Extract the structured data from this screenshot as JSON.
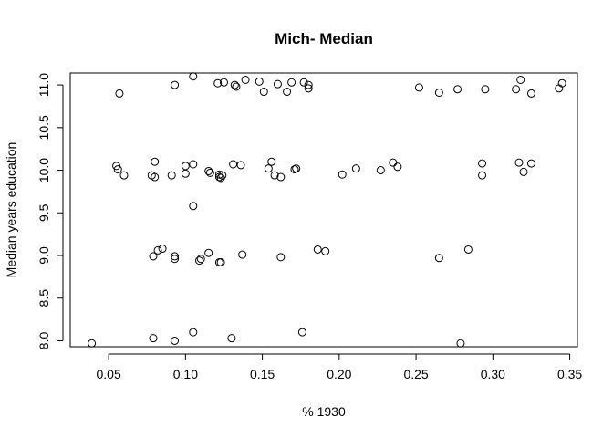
{
  "chart_data": {
    "type": "scatter",
    "title": "Mich- Median",
    "xlabel": "% 1930",
    "ylabel": "Median years education",
    "xlim": [
      0.025,
      0.355
    ],
    "ylim": [
      7.93,
      11.14
    ],
    "x_ticks": [
      0.05,
      0.1,
      0.15,
      0.2,
      0.25,
      0.3,
      0.35
    ],
    "x_tick_labels": [
      "0.05",
      "0.10",
      "0.15",
      "0.20",
      "0.25",
      "0.30",
      "0.35"
    ],
    "y_ticks": [
      8.0,
      8.5,
      9.0,
      9.5,
      10.0,
      10.5,
      11.0
    ],
    "y_tick_labels": [
      "8.0",
      "8.5",
      "9.0",
      "9.5",
      "10.0",
      "10.5",
      "11.0"
    ],
    "grid": false,
    "points": [
      {
        "x": 0.039,
        "y": 7.97
      },
      {
        "x": 0.079,
        "y": 8.03
      },
      {
        "x": 0.093,
        "y": 8.0
      },
      {
        "x": 0.105,
        "y": 8.1
      },
      {
        "x": 0.13,
        "y": 8.03
      },
      {
        "x": 0.176,
        "y": 8.1
      },
      {
        "x": 0.279,
        "y": 7.97
      },
      {
        "x": 0.079,
        "y": 8.99
      },
      {
        "x": 0.082,
        "y": 9.06
      },
      {
        "x": 0.085,
        "y": 9.08
      },
      {
        "x": 0.093,
        "y": 8.99
      },
      {
        "x": 0.093,
        "y": 8.96
      },
      {
        "x": 0.109,
        "y": 8.94
      },
      {
        "x": 0.11,
        "y": 8.96
      },
      {
        "x": 0.115,
        "y": 9.03
      },
      {
        "x": 0.122,
        "y": 8.92
      },
      {
        "x": 0.123,
        "y": 8.92
      },
      {
        "x": 0.137,
        "y": 9.01
      },
      {
        "x": 0.162,
        "y": 8.98
      },
      {
        "x": 0.186,
        "y": 9.07
      },
      {
        "x": 0.191,
        "y": 9.05
      },
      {
        "x": 0.265,
        "y": 8.97
      },
      {
        "x": 0.284,
        "y": 9.07
      },
      {
        "x": 0.105,
        "y": 9.58
      },
      {
        "x": 0.055,
        "y": 10.05
      },
      {
        "x": 0.056,
        "y": 10.01
      },
      {
        "x": 0.06,
        "y": 9.94
      },
      {
        "x": 0.078,
        "y": 9.94
      },
      {
        "x": 0.08,
        "y": 10.1
      },
      {
        "x": 0.08,
        "y": 9.92
      },
      {
        "x": 0.091,
        "y": 9.94
      },
      {
        "x": 0.1,
        "y": 10.05
      },
      {
        "x": 0.1,
        "y": 9.96
      },
      {
        "x": 0.105,
        "y": 10.07
      },
      {
        "x": 0.115,
        "y": 9.99
      },
      {
        "x": 0.116,
        "y": 9.97
      },
      {
        "x": 0.122,
        "y": 9.92
      },
      {
        "x": 0.122,
        "y": 9.95
      },
      {
        "x": 0.123,
        "y": 9.91
      },
      {
        "x": 0.124,
        "y": 9.94
      },
      {
        "x": 0.131,
        "y": 10.07
      },
      {
        "x": 0.136,
        "y": 10.06
      },
      {
        "x": 0.154,
        "y": 10.02
      },
      {
        "x": 0.156,
        "y": 10.1
      },
      {
        "x": 0.158,
        "y": 9.94
      },
      {
        "x": 0.162,
        "y": 9.92
      },
      {
        "x": 0.171,
        "y": 10.01
      },
      {
        "x": 0.172,
        "y": 10.02
      },
      {
        "x": 0.202,
        "y": 9.95
      },
      {
        "x": 0.211,
        "y": 10.02
      },
      {
        "x": 0.227,
        "y": 10.0
      },
      {
        "x": 0.235,
        "y": 10.09
      },
      {
        "x": 0.238,
        "y": 10.04
      },
      {
        "x": 0.293,
        "y": 10.08
      },
      {
        "x": 0.293,
        "y": 9.94
      },
      {
        "x": 0.317,
        "y": 10.09
      },
      {
        "x": 0.32,
        "y": 9.98
      },
      {
        "x": 0.325,
        "y": 10.08
      },
      {
        "x": 0.057,
        "y": 10.9
      },
      {
        "x": 0.093,
        "y": 11.0
      },
      {
        "x": 0.105,
        "y": 11.1
      },
      {
        "x": 0.121,
        "y": 11.02
      },
      {
        "x": 0.125,
        "y": 11.03
      },
      {
        "x": 0.132,
        "y": 11.0
      },
      {
        "x": 0.133,
        "y": 10.98
      },
      {
        "x": 0.139,
        "y": 11.06
      },
      {
        "x": 0.148,
        "y": 11.04
      },
      {
        "x": 0.151,
        "y": 10.92
      },
      {
        "x": 0.16,
        "y": 11.01
      },
      {
        "x": 0.166,
        "y": 10.92
      },
      {
        "x": 0.169,
        "y": 11.03
      },
      {
        "x": 0.177,
        "y": 11.03
      },
      {
        "x": 0.18,
        "y": 11.0
      },
      {
        "x": 0.18,
        "y": 10.96
      },
      {
        "x": 0.252,
        "y": 10.97
      },
      {
        "x": 0.265,
        "y": 10.91
      },
      {
        "x": 0.277,
        "y": 10.95
      },
      {
        "x": 0.295,
        "y": 10.95
      },
      {
        "x": 0.315,
        "y": 10.95
      },
      {
        "x": 0.318,
        "y": 11.06
      },
      {
        "x": 0.325,
        "y": 10.9
      },
      {
        "x": 0.343,
        "y": 10.96
      },
      {
        "x": 0.345,
        "y": 11.02
      }
    ]
  }
}
